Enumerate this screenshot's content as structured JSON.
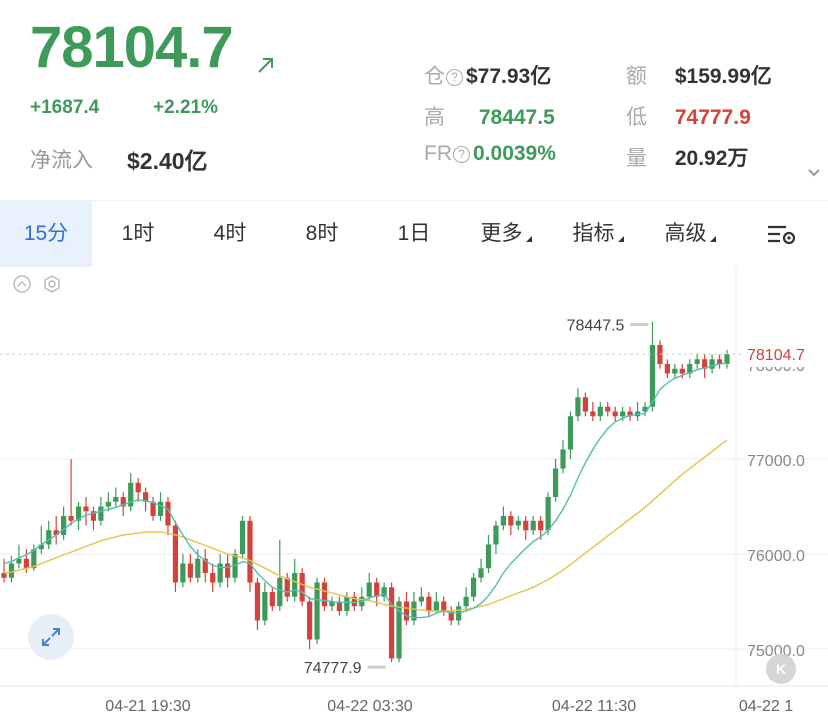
{
  "header": {
    "price": "78104.7",
    "change": "+1687.4",
    "change_pct": "+2.21%",
    "net_inflow_label": "净流入",
    "net_inflow_value": "$2.40亿",
    "stats": {
      "open_interest_label": "仓",
      "open_interest_value": "$77.93亿",
      "turnover_label": "额",
      "turnover_value": "$159.99亿",
      "high_label": "高",
      "high_value": "78447.5",
      "low_label": "低",
      "low_value": "74777.9",
      "funding_label": "FR",
      "funding_value": "0.0039%",
      "volume_label": "量",
      "volume_value": "20.92万"
    }
  },
  "tabs": [
    {
      "label": "15分",
      "active": true
    },
    {
      "label": "1时"
    },
    {
      "label": "4时"
    },
    {
      "label": "8时"
    },
    {
      "label": "1日"
    },
    {
      "label": "更多"
    },
    {
      "label": "指标"
    },
    {
      "label": "高级"
    }
  ],
  "colors": {
    "up": "#3e9a5a",
    "down": "#d4433b",
    "ma_fast": "#4fc0b0",
    "ma_slow": "#e8c24a",
    "accent": "#2f6fd6"
  },
  "icons": [
    "arrow-up-right-icon",
    "info-icon",
    "chevron-down-icon",
    "chart-settings-icon",
    "collapse-icon",
    "hexagon-settings-icon",
    "expand-icon",
    "k-icon"
  ],
  "chart_data": {
    "type": "candlestick",
    "y_ticks": [
      "77000.0",
      "76000.0",
      "75000.0"
    ],
    "x_ticks": [
      "04-21 19:30",
      "04-22 03:30",
      "04-22 11:30",
      "04-22 1"
    ],
    "current_price_label": "78104.7",
    "partial_tick_label": "78000.0",
    "high_marker": "78447.5",
    "low_marker": "74777.9",
    "ylim": [
      74850,
      78600
    ],
    "candles": [
      [
        75800,
        75750,
        75950,
        75700
      ],
      [
        75750,
        75900,
        75980,
        75700
      ],
      [
        75900,
        75950,
        76100,
        75850
      ],
      [
        75950,
        75850,
        76050,
        75800
      ],
      [
        75850,
        76050,
        76100,
        75820
      ],
      [
        76050,
        76100,
        76300,
        76000
      ],
      [
        76100,
        76250,
        76350,
        76050
      ],
      [
        76250,
        76200,
        76400,
        76100
      ],
      [
        76200,
        76400,
        76500,
        76150
      ],
      [
        76400,
        76350,
        77000,
        76300
      ],
      [
        76350,
        76500,
        76550,
        76250
      ],
      [
        76500,
        76450,
        76600,
        76300
      ],
      [
        76450,
        76350,
        76500,
        76250
      ],
      [
        76350,
        76500,
        76600,
        76300
      ],
      [
        76500,
        76550,
        76650,
        76450
      ],
      [
        76550,
        76600,
        76700,
        76500
      ],
      [
        76600,
        76500,
        76650,
        76400
      ],
      [
        76500,
        76750,
        76850,
        76450
      ],
      [
        76750,
        76650,
        76800,
        76550
      ],
      [
        76650,
        76550,
        76700,
        76450
      ],
      [
        76550,
        76400,
        76600,
        76350
      ],
      [
        76400,
        76550,
        76650,
        76350
      ],
      [
        76550,
        76300,
        76600,
        76200
      ],
      [
        76300,
        75700,
        76350,
        75600
      ],
      [
        75700,
        75900,
        76000,
        75650
      ],
      [
        75900,
        75750,
        76000,
        75700
      ],
      [
        75750,
        75950,
        76050,
        75700
      ],
      [
        75950,
        75800,
        76050,
        75700
      ],
      [
        75800,
        75700,
        75900,
        75600
      ],
      [
        75700,
        75900,
        76000,
        75650
      ],
      [
        75900,
        75750,
        76000,
        75650
      ],
      [
        75750,
        76000,
        76050,
        75700
      ],
      [
        76000,
        76350,
        76400,
        75950
      ],
      [
        76350,
        75700,
        76400,
        75600
      ],
      [
        75700,
        75300,
        75750,
        75200
      ],
      [
        75300,
        75600,
        75700,
        75250
      ],
      [
        75600,
        75450,
        75650,
        75400
      ],
      [
        75450,
        75750,
        76150,
        75400
      ],
      [
        75750,
        75550,
        75800,
        75500
      ],
      [
        75550,
        75800,
        75950,
        75500
      ],
      [
        75800,
        75500,
        75850,
        75450
      ],
      [
        75500,
        75100,
        75550,
        75000
      ],
      [
        75100,
        75700,
        75750,
        75050
      ],
      [
        75700,
        75450,
        75750,
        75400
      ],
      [
        75450,
        75500,
        75550,
        75400
      ],
      [
        75500,
        75400,
        75550,
        75350
      ],
      [
        75400,
        75550,
        75600,
        75350
      ],
      [
        75550,
        75450,
        75600,
        75400
      ],
      [
        75450,
        75550,
        75650,
        75400
      ],
      [
        75550,
        75700,
        75800,
        75500
      ],
      [
        75700,
        75550,
        75750,
        75450
      ],
      [
        75550,
        75650,
        75700,
        75500
      ],
      [
        75650,
        74900,
        75700,
        74860
      ],
      [
        74900,
        75500,
        75550,
        74860
      ],
      [
        75500,
        75300,
        75600,
        75250
      ],
      [
        75300,
        75500,
        75600,
        75250
      ],
      [
        75500,
        75550,
        75650,
        75450
      ],
      [
        75550,
        75400,
        75600,
        75350
      ],
      [
        75400,
        75500,
        75600,
        75380
      ],
      [
        75500,
        75400,
        75550,
        75350
      ],
      [
        75400,
        75300,
        75450,
        75250
      ],
      [
        75300,
        75450,
        75500,
        75250
      ],
      [
        75450,
        75550,
        75650,
        75400
      ],
      [
        75550,
        75750,
        75800,
        75500
      ],
      [
        75750,
        75850,
        75950,
        75700
      ],
      [
        75850,
        76100,
        76200,
        75800
      ],
      [
        76100,
        76300,
        76350,
        76000
      ],
      [
        76300,
        76400,
        76500,
        76250
      ],
      [
        76400,
        76300,
        76450,
        76200
      ],
      [
        76300,
        76350,
        76400,
        76250
      ],
      [
        76350,
        76250,
        76400,
        76150
      ],
      [
        76250,
        76350,
        76400,
        76200
      ],
      [
        76350,
        76250,
        76400,
        76150
      ],
      [
        76250,
        76600,
        76650,
        76200
      ],
      [
        76600,
        76900,
        77000,
        76550
      ],
      [
        76900,
        77100,
        77200,
        76850
      ],
      [
        77100,
        77450,
        77500,
        77000
      ],
      [
        77450,
        77650,
        77750,
        77400
      ],
      [
        77650,
        77500,
        77700,
        77450
      ],
      [
        77500,
        77450,
        77600,
        77400
      ],
      [
        77450,
        77550,
        77600,
        77400
      ],
      [
        77550,
        77500,
        77600,
        77450
      ],
      [
        77500,
        77450,
        77550,
        77400
      ],
      [
        77450,
        77500,
        77550,
        77400
      ],
      [
        77500,
        77450,
        77550,
        77400
      ],
      [
        77450,
        77500,
        77600,
        77400
      ],
      [
        77500,
        77550,
        77600,
        77450
      ],
      [
        77550,
        78200,
        78447,
        77500
      ],
      [
        78200,
        78000,
        78250,
        77950
      ],
      [
        78000,
        77900,
        78050,
        77850
      ],
      [
        77900,
        77950,
        78000,
        77850
      ],
      [
        77950,
        77900,
        78000,
        77850
      ],
      [
        77900,
        78000,
        78050,
        77850
      ],
      [
        78000,
        78050,
        78100,
        77950
      ],
      [
        78050,
        77950,
        78100,
        77850
      ],
      [
        77950,
        78050,
        78100,
        77900
      ],
      [
        78050,
        78000,
        78100,
        77950
      ],
      [
        78000,
        78105,
        78150,
        77950
      ]
    ],
    "ma_fast": [
      75900,
      75920,
      75960,
      75990,
      76040,
      76100,
      76150,
      76200,
      76260,
      76320,
      76370,
      76410,
      76430,
      76450,
      76470,
      76490,
      76520,
      76550,
      76570,
      76560,
      76540,
      76510,
      76470,
      76330,
      76200,
      76080,
      75990,
      75930,
      75880,
      75860,
      75860,
      75880,
      75920,
      75900,
      75800,
      75720,
      75650,
      75620,
      75600,
      75620,
      75600,
      75530,
      75520,
      75510,
      75500,
      75490,
      75490,
      75490,
      75500,
      75540,
      75560,
      75580,
      75470,
      75400,
      75350,
      75330,
      75330,
      75340,
      75380,
      75400,
      75380,
      75380,
      75400,
      75430,
      75480,
      75560,
      75670,
      75800,
      75900,
      75980,
      76060,
      76130,
      76180,
      76250,
      76350,
      76470,
      76620,
      76800,
      76960,
      77100,
      77220,
      77320,
      77390,
      77430,
      77460,
      77470,
      77480,
      77600,
      77730,
      77800,
      77850,
      77880,
      77910,
      77940,
      77960,
      77980,
      78000,
      78010
    ],
    "ma_slow": [
      75800,
      75810,
      75830,
      75850,
      75870,
      75900,
      75930,
      75960,
      75990,
      76020,
      76050,
      76080,
      76110,
      76140,
      76160,
      76180,
      76200,
      76210,
      76220,
      76230,
      76230,
      76230,
      76220,
      76200,
      76180,
      76150,
      76120,
      76090,
      76060,
      76030,
      76000,
      75980,
      75960,
      75930,
      75890,
      75850,
      75810,
      75770,
      75740,
      75710,
      75680,
      75650,
      75630,
      75610,
      75590,
      75570,
      75550,
      75530,
      75520,
      75510,
      75490,
      75470,
      75450,
      75440,
      75430,
      75420,
      75410,
      75400,
      75400,
      75400,
      75400,
      75410,
      75420,
      75430,
      75450,
      75470,
      75500,
      75530,
      75560,
      75590,
      75620,
      75650,
      75690,
      75730,
      75780,
      75830,
      75890,
      75950,
      76010,
      76070,
      76130,
      76190,
      76250,
      76310,
      76370,
      76430,
      76490,
      76560,
      76630,
      76700,
      76770,
      76840,
      76900,
      76960,
      77020,
      77080,
      77140,
      77200
    ]
  }
}
